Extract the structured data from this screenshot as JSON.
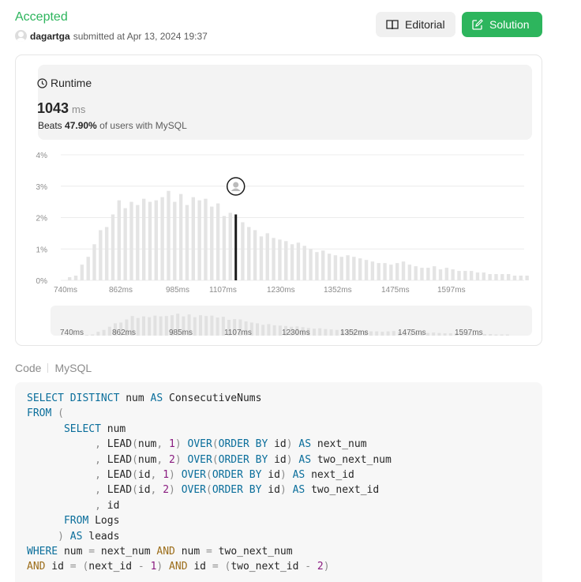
{
  "header": {
    "status": "Accepted",
    "username": "dagartga",
    "submitted_text": "submitted at Apr 13, 2024 19:37",
    "editorial_label": "Editorial",
    "solution_label": "Solution"
  },
  "runtime": {
    "title": "Runtime",
    "value": "1043",
    "unit": "ms",
    "beats_prefix": "Beats",
    "beats_value": "47.90%",
    "beats_suffix": "of users with MySQL"
  },
  "chart_data": {
    "type": "bar",
    "y_ticks": [
      "4%",
      "3%",
      "2%",
      "1%",
      "0%"
    ],
    "ylim": [
      0,
      4
    ],
    "x_ticks": [
      "740ms",
      "862ms",
      "985ms",
      "1107ms",
      "1230ms",
      "1352ms",
      "1475ms",
      "1597ms"
    ],
    "highlight_bar": 27,
    "values": [
      0.1,
      0.15,
      0.5,
      0.75,
      1.15,
      1.6,
      1.7,
      2.1,
      2.55,
      2.3,
      2.5,
      2.4,
      2.6,
      2.5,
      2.55,
      2.65,
      2.85,
      2.5,
      2.75,
      2.4,
      2.65,
      2.55,
      2.6,
      2.35,
      2.45,
      2.05,
      2.15,
      2.1,
      1.85,
      1.7,
      1.6,
      1.4,
      1.5,
      1.35,
      1.3,
      1.25,
      1.15,
      1.2,
      1.1,
      1.0,
      0.9,
      0.95,
      0.85,
      0.8,
      0.75,
      0.8,
      0.75,
      0.7,
      0.65,
      0.6,
      0.55,
      0.55,
      0.5,
      0.55,
      0.6,
      0.5,
      0.45,
      0.4,
      0.4,
      0.45,
      0.35,
      0.4,
      0.35,
      0.3,
      0.3,
      0.3,
      0.25,
      0.25,
      0.2,
      0.2,
      0.2,
      0.2,
      0.15,
      0.15,
      0.15
    ]
  },
  "code_section": {
    "label": "Code",
    "language": "MySQL"
  }
}
